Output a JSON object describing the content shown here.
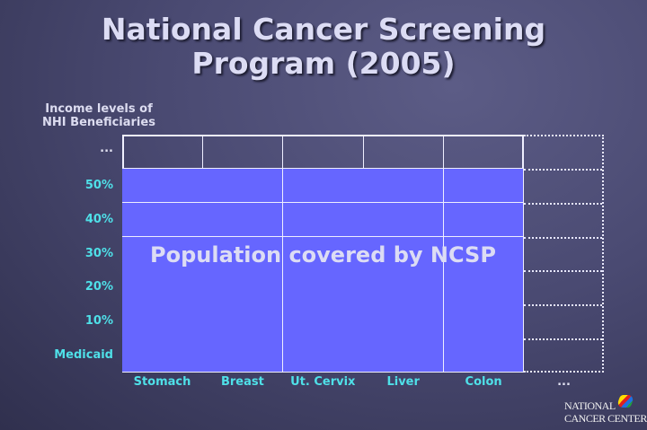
{
  "title": [
    "National Cancer Screening",
    "Program (2005)"
  ],
  "axis_title": [
    "Income levels of",
    "NHI Beneficiaries"
  ],
  "rows": [
    "...",
    "50%",
    "40%",
    "30%",
    "20%",
    "10%",
    "Medicaid"
  ],
  "columns": [
    "Stomach",
    "Breast",
    "Ut. Cervix",
    "Liver",
    "Colon",
    "..."
  ],
  "covered_rows": [
    "50%",
    "40%",
    "30%",
    "20%",
    "10%",
    "Medicaid"
  ],
  "overlay_text": "Population covered by NCSP",
  "logo": [
    "NATIONAL",
    "CANCER CENTER"
  ],
  "colors": {
    "covered": "#6666ff",
    "labels": "#4fe0e8",
    "title": "#dcdcf4"
  }
}
